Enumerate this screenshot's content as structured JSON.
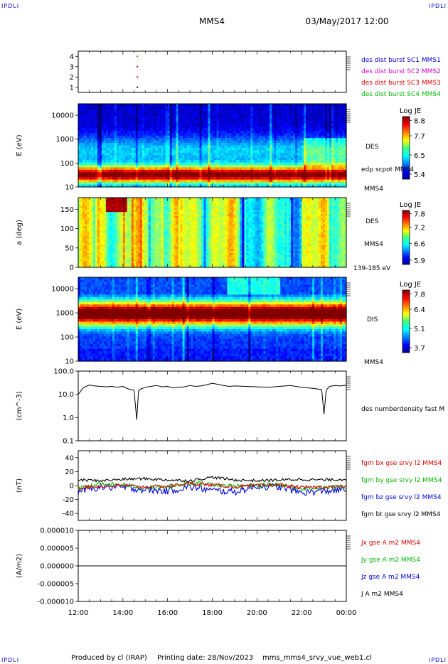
{
  "header": {
    "spacecraft": "MMS4",
    "datetime": "03/May/2017 12:00",
    "corner_label": "IPDLI"
  },
  "footer": {
    "produced_by": "Produced by cl (IRAP)",
    "printing_date": "Printing date: 28/Nov/2023",
    "filename": "mms_mms4_srvy_vue_web1.cl"
  },
  "time_axis": {
    "tick_labels": [
      "12:00",
      "14:00",
      "16:00",
      "18:00",
      "20:00",
      "22:00",
      "00:00"
    ]
  },
  "chart_data": [
    {
      "type": "scatter",
      "panel": "burst",
      "ylim": [
        0.5,
        4.5
      ],
      "y_ticks": [
        "4",
        "3",
        "2",
        "1"
      ],
      "series": [
        {
          "name": "des dist burst SC1 MMS1",
          "color": "#0000cc",
          "x": [
            14.65
          ],
          "y": [
            1
          ]
        },
        {
          "name": "des dist burst SC2 MMS2",
          "color": "#cc00cc",
          "x": [
            14.65
          ],
          "y": [
            2
          ]
        },
        {
          "name": "des dist burst SC3 MMS3",
          "color": "#dd0000",
          "x": [
            14.65
          ],
          "y": [
            3
          ]
        },
        {
          "name": "des dist burst SC4 MMS4",
          "color": "#00bb00",
          "x": [
            14.65
          ],
          "y": [
            4
          ]
        }
      ]
    },
    {
      "type": "heatmap",
      "panel": "des_energy",
      "ylabel": "E (eV)",
      "y_scale": "log",
      "ylim": [
        10,
        30000
      ],
      "y_ticks": [
        "10000",
        "1000",
        "100",
        "10"
      ],
      "label": "DES",
      "overlay": "edp scpot MMS4",
      "bottom_label": "MMS4",
      "colorbar": {
        "title": "Log JE",
        "ticks": [
          "8.8",
          "7.7",
          "6.5",
          "5.4"
        ]
      }
    },
    {
      "type": "heatmap",
      "panel": "des_pitch",
      "ylabel": "a (deg)",
      "ylim": [
        0,
        180
      ],
      "y_ticks": [
        "150",
        "100",
        "50",
        "0"
      ],
      "label": "DES",
      "label2": "MMS4",
      "bottom_label": "139-185 eV",
      "colorbar": {
        "title": "Log JE",
        "ticks": [
          "7.8",
          "7.2",
          "6.6",
          "5.9"
        ]
      }
    },
    {
      "type": "heatmap",
      "panel": "dis_energy",
      "ylabel": "E (eV)",
      "y_scale": "log",
      "ylim": [
        10,
        30000
      ],
      "y_ticks": [
        "10000",
        "1000",
        "100",
        "10"
      ],
      "label": "DIS",
      "bottom_label": "MMS4",
      "colorbar": {
        "title": "Log JE",
        "ticks": [
          "7.8",
          "6.4",
          "5.1",
          "3.7"
        ]
      }
    },
    {
      "type": "line",
      "panel": "density",
      "ylabel": "(cm^-3)",
      "y_scale": "log",
      "ylim": [
        0.1,
        100
      ],
      "y_ticks": [
        "100.0",
        "10.0",
        "1.0",
        "0.1"
      ],
      "series": [
        {
          "name": "des numberdensity fast M",
          "color": "#000000",
          "x": [
            12.0,
            12.25,
            12.5,
            12.75,
            13.0,
            13.25,
            13.5,
            13.75,
            14.0,
            14.25,
            14.5,
            14.62,
            14.7,
            14.8,
            15.0,
            15.25,
            15.5,
            15.75,
            16.0,
            16.25,
            16.5,
            16.75,
            17.0,
            17.25,
            17.5,
            17.75,
            18.0,
            18.25,
            18.5,
            18.75,
            19.0,
            19.5,
            20.0,
            20.5,
            21.0,
            21.5,
            22.0,
            22.5,
            22.9,
            23.0,
            23.1,
            23.25,
            23.5,
            23.75,
            24.0
          ],
          "y": [
            10,
            20,
            25,
            23,
            22,
            21,
            22,
            20,
            22,
            17,
            15,
            0.8,
            14,
            17,
            20,
            22,
            24,
            21,
            22,
            19,
            20,
            21,
            24,
            22,
            23,
            26,
            30,
            27,
            24,
            22,
            23,
            22,
            21,
            20,
            22,
            24,
            20,
            18,
            16,
            1.4,
            15,
            22,
            24,
            23,
            25
          ]
        }
      ]
    },
    {
      "type": "line",
      "panel": "magnetic_field",
      "ylabel": "(nT)",
      "ylim": [
        -50,
        50
      ],
      "y_ticks": [
        "40",
        "20",
        "0",
        "-20",
        "-40"
      ],
      "series": [
        {
          "name": "fgm bx gse srvy l2 MMS4",
          "color": "#dd0000",
          "x": [
            12,
            13,
            14,
            15,
            16,
            17,
            18,
            19,
            20,
            21,
            22,
            23,
            24
          ],
          "y": [
            -3,
            -1,
            0,
            -2,
            -1,
            3,
            1,
            -2,
            0,
            1,
            -3,
            -2,
            -1
          ]
        },
        {
          "name": "fgm by gse srvy l2 MMS4",
          "color": "#00bb00",
          "x": [
            12,
            13,
            14,
            15,
            16,
            17,
            18,
            19,
            20,
            21,
            22,
            23,
            24
          ],
          "y": [
            -4,
            2,
            1,
            -3,
            -2,
            4,
            2,
            -1,
            0,
            2,
            -4,
            -3,
            -2
          ]
        },
        {
          "name": "fgm bz gse srvy l2 MMS4",
          "color": "#0000dd",
          "x": [
            12,
            13,
            14,
            15,
            16,
            17,
            18,
            19,
            20,
            21,
            22,
            23,
            24
          ],
          "y": [
            -8,
            -2,
            -3,
            -6,
            -8,
            -2,
            -7,
            -9,
            -1,
            -2,
            -10,
            -8,
            -6
          ]
        },
        {
          "name": "fgm bt gse srvy l2 MMS4",
          "color": "#000000",
          "x": [
            12,
            13,
            14,
            15,
            16,
            17,
            18,
            19,
            20,
            21,
            22,
            23,
            24
          ],
          "y": [
            8,
            7,
            9,
            10,
            8,
            7,
            12,
            8,
            7,
            8,
            9,
            8,
            9
          ]
        }
      ]
    },
    {
      "type": "line",
      "panel": "current",
      "ylabel": "(A/m2)",
      "ylim": [
        -1e-05,
        1e-05
      ],
      "y_ticks": [
        "0.000010",
        "0.000005",
        "0.000000",
        "-0.000005",
        "-0.000010"
      ],
      "series": [
        {
          "name": "Jx gse A m2 MMS4",
          "color": "#dd0000",
          "x": [
            12,
            24
          ],
          "y": [
            0,
            0
          ]
        },
        {
          "name": "Jy gse A m2 MMS4",
          "color": "#00bb00",
          "x": [
            12,
            24
          ],
          "y": [
            0,
            0
          ]
        },
        {
          "name": "Jz gse A m2 MMS4",
          "color": "#0000dd",
          "x": [
            12,
            24
          ],
          "y": [
            0,
            0
          ]
        },
        {
          "name": "J A m2 MMS4",
          "color": "#000000",
          "x": [
            12,
            24
          ],
          "y": [
            0,
            0
          ]
        }
      ]
    }
  ]
}
